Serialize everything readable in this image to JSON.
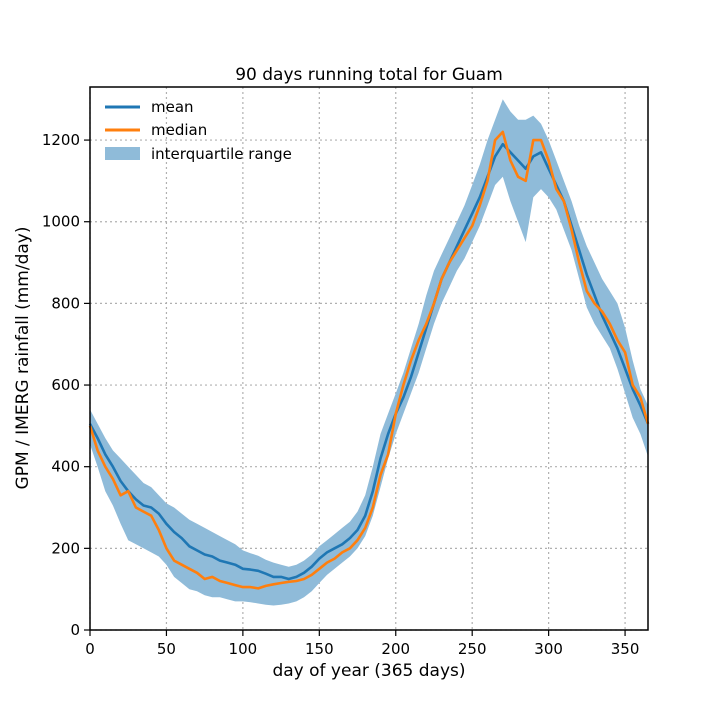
{
  "chart_data": {
    "type": "line",
    "title": "90 days running total for Guam",
    "xlabel": "day of year (365 days)",
    "ylabel": "GPM / IMERG rainfall (mm/day)",
    "xlim": [
      0,
      365
    ],
    "ylim": [
      0,
      1330
    ],
    "xticks": [
      0,
      50,
      100,
      150,
      200,
      250,
      300,
      350
    ],
    "yticks": [
      0,
      200,
      400,
      600,
      800,
      1000,
      1200
    ],
    "grid": true,
    "legend_position": "top-left",
    "legend": [
      "mean",
      "median",
      "interquartile range"
    ],
    "colors": {
      "mean": "#1f77b4",
      "median": "#ff7f0e",
      "band": "#8fbbd9"
    },
    "x": [
      0,
      5,
      10,
      15,
      20,
      25,
      30,
      35,
      40,
      45,
      50,
      55,
      60,
      65,
      70,
      75,
      80,
      85,
      90,
      95,
      100,
      105,
      110,
      115,
      120,
      125,
      130,
      135,
      140,
      145,
      150,
      155,
      160,
      165,
      170,
      175,
      180,
      185,
      190,
      195,
      200,
      205,
      210,
      215,
      220,
      225,
      230,
      235,
      240,
      245,
      250,
      255,
      260,
      265,
      270,
      275,
      280,
      285,
      290,
      295,
      300,
      305,
      310,
      315,
      320,
      325,
      330,
      335,
      340,
      345,
      350,
      355,
      360,
      365
    ],
    "series": [
      {
        "name": "mean",
        "values": [
          505,
          470,
          430,
          400,
          365,
          340,
          320,
          305,
          300,
          285,
          260,
          240,
          225,
          205,
          195,
          185,
          180,
          170,
          165,
          160,
          150,
          148,
          145,
          138,
          130,
          130,
          125,
          130,
          140,
          155,
          175,
          190,
          200,
          210,
          225,
          245,
          280,
          340,
          420,
          480,
          530,
          570,
          620,
          680,
          740,
          800,
          860,
          900,
          940,
          980,
          1020,
          1060,
          1110,
          1160,
          1190,
          1170,
          1150,
          1130,
          1160,
          1170,
          1130,
          1090,
          1050,
          990,
          930,
          870,
          820,
          770,
          730,
          690,
          640,
          590,
          550,
          505
        ]
      },
      {
        "name": "median",
        "values": [
          500,
          440,
          400,
          370,
          330,
          340,
          300,
          290,
          280,
          245,
          200,
          170,
          160,
          150,
          140,
          125,
          130,
          120,
          115,
          110,
          105,
          105,
          102,
          108,
          112,
          115,
          118,
          120,
          125,
          135,
          150,
          165,
          175,
          190,
          200,
          220,
          250,
          300,
          380,
          430,
          530,
          600,
          660,
          710,
          750,
          800,
          860,
          900,
          930,
          960,
          990,
          1040,
          1100,
          1200,
          1220,
          1150,
          1110,
          1100,
          1200,
          1200,
          1150,
          1080,
          1050,
          980,
          900,
          830,
          800,
          780,
          750,
          710,
          680,
          600,
          570,
          505
        ]
      },
      {
        "name": "interquartile range",
        "lower": [
          455,
          400,
          340,
          305,
          260,
          220,
          210,
          200,
          190,
          180,
          160,
          130,
          115,
          100,
          95,
          85,
          80,
          80,
          75,
          70,
          70,
          68,
          65,
          62,
          60,
          62,
          65,
          70,
          80,
          95,
          115,
          135,
          150,
          165,
          180,
          200,
          230,
          280,
          350,
          420,
          480,
          530,
          580,
          630,
          690,
          750,
          800,
          840,
          880,
          910,
          950,
          990,
          1040,
          1090,
          1110,
          1050,
          1000,
          950,
          1060,
          1080,
          1060,
          1030,
          980,
          930,
          860,
          790,
          750,
          720,
          690,
          640,
          580,
          520,
          480,
          425
        ],
        "upper": [
          540,
          505,
          470,
          440,
          420,
          400,
          380,
          360,
          350,
          330,
          310,
          300,
          285,
          270,
          260,
          250,
          240,
          230,
          220,
          210,
          195,
          188,
          182,
          172,
          165,
          160,
          155,
          160,
          170,
          185,
          205,
          220,
          235,
          250,
          265,
          290,
          330,
          400,
          480,
          530,
          580,
          630,
          690,
          750,
          820,
          880,
          920,
          960,
          1000,
          1040,
          1090,
          1140,
          1200,
          1250,
          1300,
          1270,
          1250,
          1250,
          1260,
          1240,
          1200,
          1150,
          1100,
          1050,
          990,
          940,
          900,
          860,
          830,
          800,
          740,
          660,
          590,
          550
        ]
      }
    ]
  }
}
